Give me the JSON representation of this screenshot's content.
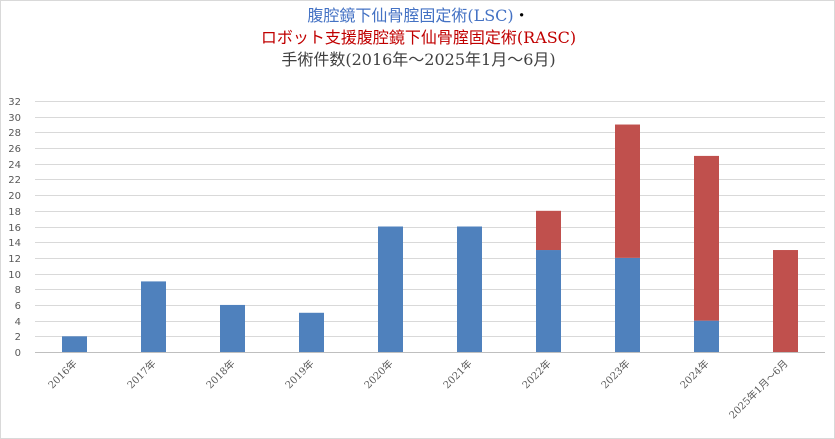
{
  "chart_data": {
    "type": "bar",
    "stacked": true,
    "title": {
      "line1": "腹腔鏡下仙骨腟固定術(LSC)",
      "line1_separator": "・",
      "line2": "ロボット支援腹腔鏡下仙骨腟固定術(RASC)",
      "line3": "手術件数(2016年～2025年1月～6月)"
    },
    "categories": [
      "2016年",
      "2017年",
      "2018年",
      "2019年",
      "2020年",
      "2021年",
      "2022年",
      "2023年",
      "2024年",
      "2025年1月～6月"
    ],
    "series": [
      {
        "key": "LSC",
        "color": "#4f81bd",
        "values": [
          2,
          9,
          6,
          5,
          16,
          16,
          13,
          12,
          4,
          0
        ]
      },
      {
        "key": "RASC",
        "color": "#c0504d",
        "values": [
          0,
          0,
          0,
          0,
          0,
          0,
          5,
          17,
          21,
          13
        ]
      }
    ],
    "ylim": [
      0,
      32
    ],
    "ytick_step": 2,
    "grid": true,
    "legend": "none",
    "xlabel": "",
    "ylabel": ""
  }
}
